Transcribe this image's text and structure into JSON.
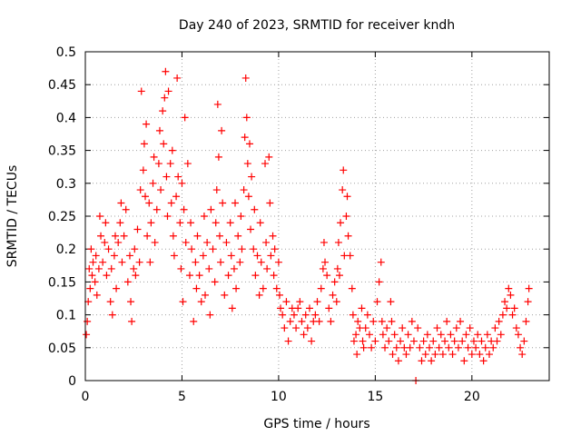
{
  "chart_data": {
    "type": "scatter",
    "title": "Day 240 of 2023, SRMTID for receiver kndh",
    "xlabel": "GPS time / hours",
    "ylabel": "SRMTID / TECUs",
    "xlim": [
      0,
      24
    ],
    "ylim": [
      0,
      0.5
    ],
    "xticks": [
      0,
      5,
      10,
      15,
      20
    ],
    "xtick_labels": [
      "0",
      "5",
      "10",
      "15",
      "20"
    ],
    "yticks": [
      0,
      0.05,
      0.1,
      0.15,
      0.2,
      0.25,
      0.3,
      0.35,
      0.4,
      0.45,
      0.5
    ],
    "ytick_labels": [
      "0",
      "0.05",
      "0.1",
      "0.15",
      "0.2",
      "0.25",
      "0.3",
      "0.35",
      "0.4",
      "0.45",
      "0.5"
    ],
    "grid": true,
    "marker": "+",
    "color": "#ff0000",
    "series": [
      {
        "name": "SRMTID",
        "points": [
          [
            0.05,
            0.07
          ],
          [
            0.1,
            0.09
          ],
          [
            0.15,
            0.12
          ],
          [
            0.2,
            0.17
          ],
          [
            0.25,
            0.14
          ],
          [
            0.3,
            0.2
          ],
          [
            0.35,
            0.16
          ],
          [
            0.4,
            0.18
          ],
          [
            0.5,
            0.15
          ],
          [
            0.55,
            0.19
          ],
          [
            0.6,
            0.13
          ],
          [
            0.7,
            0.17
          ],
          [
            0.75,
            0.25
          ],
          [
            0.8,
            0.22
          ],
          [
            0.9,
            0.18
          ],
          [
            1.0,
            0.21
          ],
          [
            1.05,
            0.24
          ],
          [
            1.1,
            0.16
          ],
          [
            1.2,
            0.2
          ],
          [
            1.3,
            0.12
          ],
          [
            1.35,
            0.17
          ],
          [
            1.4,
            0.1
          ],
          [
            1.5,
            0.19
          ],
          [
            1.55,
            0.22
          ],
          [
            1.6,
            0.14
          ],
          [
            1.7,
            0.21
          ],
          [
            1.8,
            0.24
          ],
          [
            1.85,
            0.27
          ],
          [
            1.9,
            0.18
          ],
          [
            2.0,
            0.22
          ],
          [
            2.1,
            0.26
          ],
          [
            2.2,
            0.15
          ],
          [
            2.3,
            0.19
          ],
          [
            2.35,
            0.12
          ],
          [
            2.4,
            0.09
          ],
          [
            2.5,
            0.17
          ],
          [
            2.55,
            0.2
          ],
          [
            2.6,
            0.16
          ],
          [
            2.7,
            0.23
          ],
          [
            2.8,
            0.18
          ],
          [
            2.85,
            0.29
          ],
          [
            2.9,
            0.44
          ],
          [
            3.0,
            0.32
          ],
          [
            3.05,
            0.36
          ],
          [
            3.1,
            0.28
          ],
          [
            3.15,
            0.39
          ],
          [
            3.2,
            0.22
          ],
          [
            3.3,
            0.27
          ],
          [
            3.35,
            0.18
          ],
          [
            3.4,
            0.24
          ],
          [
            3.5,
            0.3
          ],
          [
            3.55,
            0.34
          ],
          [
            3.6,
            0.21
          ],
          [
            3.7,
            0.26
          ],
          [
            3.8,
            0.33
          ],
          [
            3.85,
            0.38
          ],
          [
            3.9,
            0.29
          ],
          [
            4.0,
            0.41
          ],
          [
            4.05,
            0.36
          ],
          [
            4.1,
            0.43
          ],
          [
            4.15,
            0.47
          ],
          [
            4.2,
            0.31
          ],
          [
            4.25,
            0.25
          ],
          [
            4.3,
            0.44
          ],
          [
            4.4,
            0.33
          ],
          [
            4.45,
            0.27
          ],
          [
            4.5,
            0.35
          ],
          [
            4.55,
            0.22
          ],
          [
            4.6,
            0.19
          ],
          [
            4.7,
            0.28
          ],
          [
            4.75,
            0.46
          ],
          [
            4.8,
            0.31
          ],
          [
            4.9,
            0.24
          ],
          [
            4.95,
            0.17
          ],
          [
            5.0,
            0.3
          ],
          [
            5.05,
            0.12
          ],
          [
            5.1,
            0.26
          ],
          [
            5.15,
            0.4
          ],
          [
            5.2,
            0.21
          ],
          [
            5.3,
            0.33
          ],
          [
            5.4,
            0.16
          ],
          [
            5.45,
            0.24
          ],
          [
            5.5,
            0.2
          ],
          [
            5.6,
            0.09
          ],
          [
            5.7,
            0.18
          ],
          [
            5.75,
            0.14
          ],
          [
            5.8,
            0.22
          ],
          [
            5.9,
            0.16
          ],
          [
            6.0,
            0.12
          ],
          [
            6.1,
            0.19
          ],
          [
            6.15,
            0.25
          ],
          [
            6.2,
            0.13
          ],
          [
            6.3,
            0.21
          ],
          [
            6.4,
            0.17
          ],
          [
            6.45,
            0.1
          ],
          [
            6.5,
            0.26
          ],
          [
            6.6,
            0.2
          ],
          [
            6.7,
            0.15
          ],
          [
            6.75,
            0.24
          ],
          [
            6.8,
            0.29
          ],
          [
            6.85,
            0.42
          ],
          [
            6.9,
            0.34
          ],
          [
            6.95,
            0.22
          ],
          [
            7.0,
            0.18
          ],
          [
            7.05,
            0.38
          ],
          [
            7.1,
            0.27
          ],
          [
            7.2,
            0.13
          ],
          [
            7.3,
            0.21
          ],
          [
            7.4,
            0.16
          ],
          [
            7.5,
            0.24
          ],
          [
            7.55,
            0.19
          ],
          [
            7.6,
            0.11
          ],
          [
            7.7,
            0.17
          ],
          [
            7.75,
            0.27
          ],
          [
            7.8,
            0.14
          ],
          [
            7.9,
            0.22
          ],
          [
            8.0,
            0.18
          ],
          [
            8.05,
            0.25
          ],
          [
            8.1,
            0.2
          ],
          [
            8.2,
            0.29
          ],
          [
            8.25,
            0.37
          ],
          [
            8.3,
            0.46
          ],
          [
            8.35,
            0.4
          ],
          [
            8.4,
            0.33
          ],
          [
            8.45,
            0.28
          ],
          [
            8.5,
            0.36
          ],
          [
            8.55,
            0.23
          ],
          [
            8.6,
            0.31
          ],
          [
            8.7,
            0.2
          ],
          [
            8.75,
            0.26
          ],
          [
            8.8,
            0.16
          ],
          [
            8.9,
            0.19
          ],
          [
            9.0,
            0.13
          ],
          [
            9.05,
            0.24
          ],
          [
            9.1,
            0.18
          ],
          [
            9.2,
            0.14
          ],
          [
            9.3,
            0.33
          ],
          [
            9.35,
            0.21
          ],
          [
            9.4,
            0.17
          ],
          [
            9.5,
            0.34
          ],
          [
            9.55,
            0.27
          ],
          [
            9.6,
            0.19
          ],
          [
            9.7,
            0.22
          ],
          [
            9.75,
            0.16
          ],
          [
            9.8,
            0.2
          ],
          [
            9.9,
            0.14
          ],
          [
            10.0,
            0.18
          ],
          [
            10.05,
            0.13
          ],
          [
            10.1,
            0.11
          ],
          [
            10.2,
            0.1
          ],
          [
            10.3,
            0.08
          ],
          [
            10.4,
            0.12
          ],
          [
            10.5,
            0.06
          ],
          [
            10.6,
            0.09
          ],
          [
            10.7,
            0.11
          ],
          [
            10.8,
            0.1
          ],
          [
            10.9,
            0.08
          ],
          [
            11.0,
            0.11
          ],
          [
            11.1,
            0.12
          ],
          [
            11.2,
            0.09
          ],
          [
            11.3,
            0.07
          ],
          [
            11.4,
            0.1
          ],
          [
            11.5,
            0.08
          ],
          [
            11.6,
            0.11
          ],
          [
            11.7,
            0.06
          ],
          [
            11.8,
            0.09
          ],
          [
            11.9,
            0.1
          ],
          [
            12.0,
            0.12
          ],
          [
            12.1,
            0.09
          ],
          [
            12.2,
            0.14
          ],
          [
            12.3,
            0.17
          ],
          [
            12.35,
            0.21
          ],
          [
            12.4,
            0.18
          ],
          [
            12.5,
            0.16
          ],
          [
            12.6,
            0.11
          ],
          [
            12.7,
            0.09
          ],
          [
            12.8,
            0.13
          ],
          [
            12.9,
            0.15
          ],
          [
            13.0,
            0.12
          ],
          [
            13.05,
            0.17
          ],
          [
            13.1,
            0.21
          ],
          [
            13.15,
            0.16
          ],
          [
            13.2,
            0.24
          ],
          [
            13.3,
            0.29
          ],
          [
            13.35,
            0.32
          ],
          [
            13.4,
            0.19
          ],
          [
            13.5,
            0.25
          ],
          [
            13.55,
            0.28
          ],
          [
            13.6,
            0.22
          ],
          [
            13.7,
            0.19
          ],
          [
            13.8,
            0.14
          ],
          [
            13.85,
            0.1
          ],
          [
            13.9,
            0.06
          ],
          [
            14.0,
            0.07
          ],
          [
            14.05,
            0.04
          ],
          [
            14.1,
            0.09
          ],
          [
            14.2,
            0.08
          ],
          [
            14.3,
            0.11
          ],
          [
            14.35,
            0.06
          ],
          [
            14.4,
            0.05
          ],
          [
            14.5,
            0.08
          ],
          [
            14.6,
            0.1
          ],
          [
            14.7,
            0.07
          ],
          [
            14.8,
            0.05
          ],
          [
            14.9,
            0.09
          ],
          [
            15.0,
            0.06
          ],
          [
            15.1,
            0.12
          ],
          [
            15.2,
            0.15
          ],
          [
            15.3,
            0.18
          ],
          [
            15.35,
            0.09
          ],
          [
            15.4,
            0.07
          ],
          [
            15.5,
            0.05
          ],
          [
            15.6,
            0.08
          ],
          [
            15.7,
            0.06
          ],
          [
            15.8,
            0.12
          ],
          [
            15.85,
            0.09
          ],
          [
            15.9,
            0.04
          ],
          [
            16.0,
            0.07
          ],
          [
            16.1,
            0.05
          ],
          [
            16.2,
            0.03
          ],
          [
            16.3,
            0.06
          ],
          [
            16.4,
            0.08
          ],
          [
            16.5,
            0.05
          ],
          [
            16.6,
            0.04
          ],
          [
            16.7,
            0.07
          ],
          [
            16.8,
            0.05
          ],
          [
            16.9,
            0.09
          ],
          [
            17.0,
            0.06
          ],
          [
            17.1,
            0.0
          ],
          [
            17.2,
            0.08
          ],
          [
            17.3,
            0.05
          ],
          [
            17.4,
            0.03
          ],
          [
            17.5,
            0.06
          ],
          [
            17.6,
            0.04
          ],
          [
            17.7,
            0.07
          ],
          [
            17.8,
            0.05
          ],
          [
            17.9,
            0.03
          ],
          [
            18.0,
            0.06
          ],
          [
            18.1,
            0.04
          ],
          [
            18.2,
            0.08
          ],
          [
            18.3,
            0.05
          ],
          [
            18.4,
            0.07
          ],
          [
            18.5,
            0.04
          ],
          [
            18.6,
            0.06
          ],
          [
            18.7,
            0.09
          ],
          [
            18.8,
            0.05
          ],
          [
            18.9,
            0.07
          ],
          [
            19.0,
            0.04
          ],
          [
            19.1,
            0.06
          ],
          [
            19.2,
            0.08
          ],
          [
            19.3,
            0.05
          ],
          [
            19.4,
            0.09
          ],
          [
            19.5,
            0.06
          ],
          [
            19.6,
            0.03
          ],
          [
            19.7,
            0.07
          ],
          [
            19.8,
            0.05
          ],
          [
            19.9,
            0.08
          ],
          [
            20.0,
            0.04
          ],
          [
            20.1,
            0.06
          ],
          [
            20.2,
            0.05
          ],
          [
            20.3,
            0.07
          ],
          [
            20.4,
            0.04
          ],
          [
            20.5,
            0.06
          ],
          [
            20.6,
            0.03
          ],
          [
            20.7,
            0.05
          ],
          [
            20.8,
            0.07
          ],
          [
            20.9,
            0.04
          ],
          [
            21.0,
            0.06
          ],
          [
            21.1,
            0.05
          ],
          [
            21.2,
            0.08
          ],
          [
            21.3,
            0.06
          ],
          [
            21.4,
            0.09
          ],
          [
            21.5,
            0.07
          ],
          [
            21.6,
            0.1
          ],
          [
            21.7,
            0.12
          ],
          [
            21.8,
            0.11
          ],
          [
            21.9,
            0.14
          ],
          [
            22.0,
            0.13
          ],
          [
            22.1,
            0.1
          ],
          [
            22.2,
            0.11
          ],
          [
            22.3,
            0.08
          ],
          [
            22.4,
            0.07
          ],
          [
            22.5,
            0.05
          ],
          [
            22.6,
            0.04
          ],
          [
            22.7,
            0.06
          ],
          [
            22.8,
            0.09
          ],
          [
            22.9,
            0.12
          ],
          [
            22.95,
            0.14
          ]
        ]
      }
    ]
  }
}
